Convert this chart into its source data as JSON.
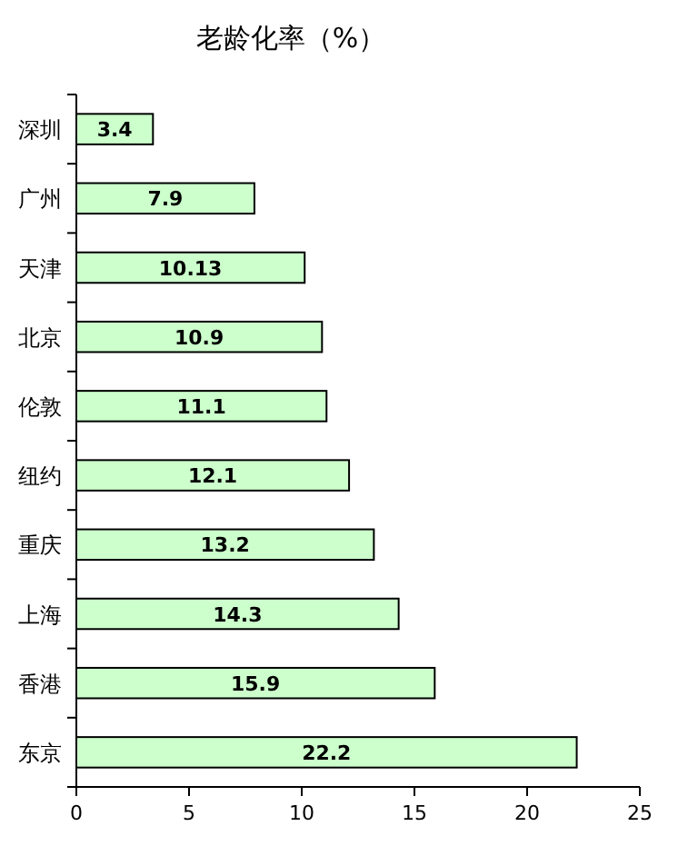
{
  "chart_data": {
    "type": "bar",
    "orientation": "horizontal",
    "title": "老龄化率（%）",
    "categories": [
      "深圳",
      "广州",
      "天津",
      "北京",
      "伦敦",
      "纽约",
      "重庆",
      "上海",
      "香港",
      "东京"
    ],
    "values": [
      3.4,
      7.9,
      10.13,
      10.9,
      11.1,
      12.1,
      13.2,
      14.3,
      15.9,
      22.2
    ],
    "color": "#ccffcc",
    "xlim": [
      0,
      25
    ],
    "xticks": [
      0,
      5,
      10,
      15,
      20,
      25
    ],
    "data_labels": true
  }
}
